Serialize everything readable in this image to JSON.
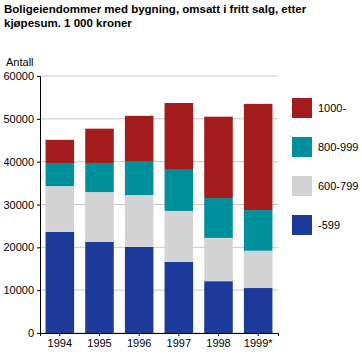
{
  "chart_data": {
    "type": "bar",
    "title": "Boligeiendommer med bygning, omsatt i fritt salg, etter kjøpesum. 1 000 kroner",
    "y_label": "Antall",
    "categories": [
      "1994",
      "1995",
      "1996",
      "1997",
      "1998",
      "1999*"
    ],
    "series": [
      {
        "name": "-599",
        "color": "#1c3a9a",
        "values": [
          23600,
          21300,
          20100,
          16600,
          12100,
          10500
        ]
      },
      {
        "name": "600-799",
        "color": "#d3d3d3",
        "values": [
          10700,
          11600,
          12100,
          11900,
          10100,
          8700
        ]
      },
      {
        "name": "800-999",
        "color": "#00909c",
        "values": [
          5400,
          6800,
          7800,
          9600,
          9300,
          9500
        ]
      },
      {
        "name": "1000-",
        "color": "#a41b1b",
        "values": [
          5400,
          8000,
          10700,
          15600,
          19000,
          24800
        ]
      }
    ],
    "ylim": [
      0,
      60000
    ],
    "yticks": [
      0,
      10000,
      20000,
      30000,
      40000,
      50000,
      60000
    ],
    "grid": true,
    "stacked": true,
    "legend": "right"
  }
}
